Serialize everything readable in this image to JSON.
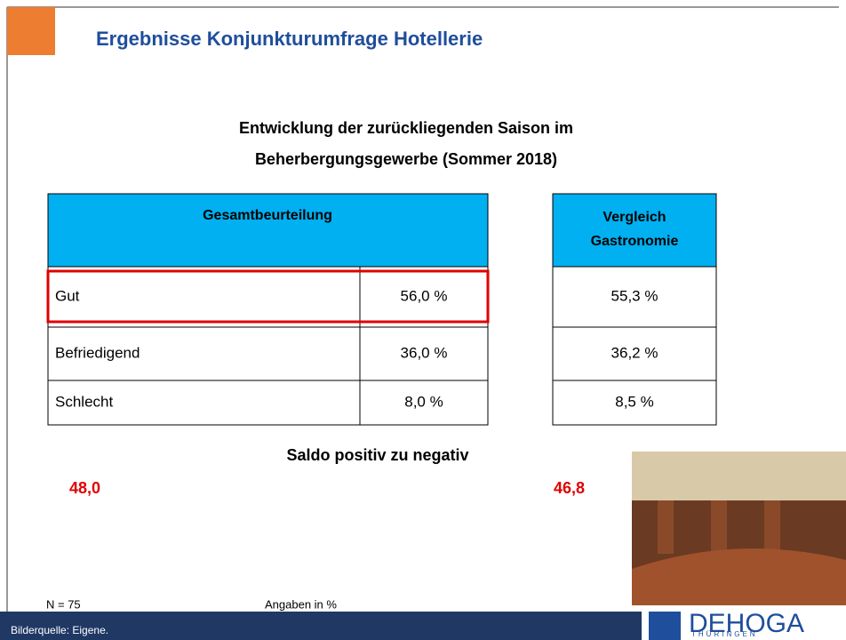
{
  "header": {
    "title": "Ergebnisse Konjunkturumfrage Hotellerie"
  },
  "subtitle": [
    "Entwicklung der zurückliegenden Saison im",
    "Beherbergungsgewerbe (Sommer 2018)"
  ],
  "table": {
    "header": "Gesamtbeurteilung",
    "rows": [
      [
        "Gut",
        "56,0 %"
      ],
      [
        "Befriedigend",
        "36,0 %"
      ],
      [
        "Schlecht",
        "8,0 %"
      ]
    ]
  },
  "comparison": {
    "header": [
      "Vergleich",
      "Gastronomie"
    ],
    "rows": [
      "55,3 %",
      "36,2 %",
      "8,5 %"
    ]
  },
  "saldo": {
    "label": "Saldo positiv zu negativ",
    "left": "48,0",
    "right": "46,8"
  },
  "notes": {
    "n": "N = 75",
    "unit": "Angaben in %"
  },
  "footer": {
    "source": "Bilderquelle:   Eigene.",
    "logo": "DEHOGA",
    "logo_sub": "THÜRINGEN"
  }
}
